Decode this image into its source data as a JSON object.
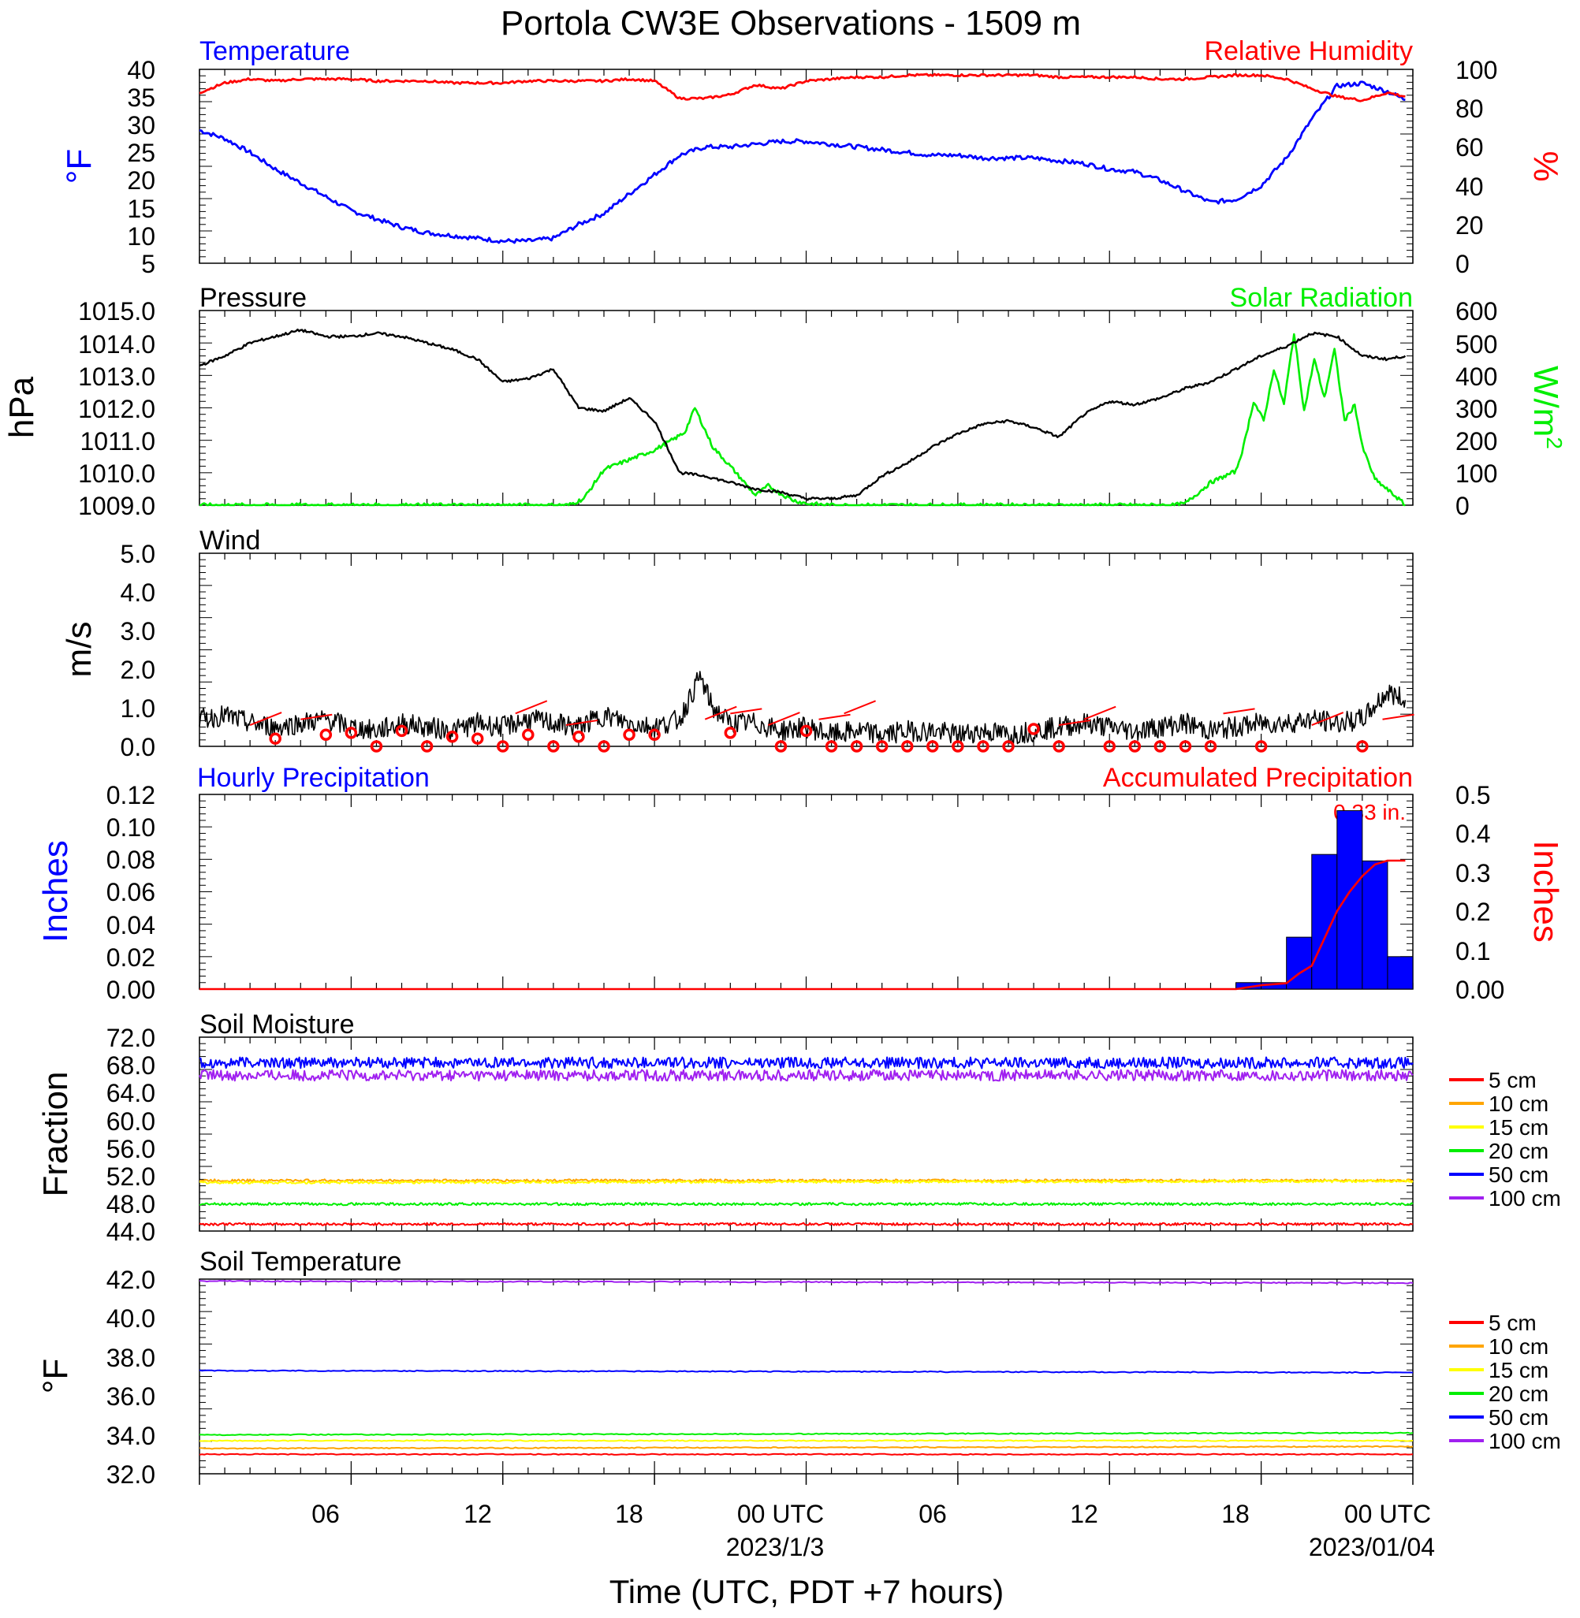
{
  "figure": {
    "title": "Portola CW3E Observations - 1509 m",
    "xlabel": "Time (UTC, PDT +7 hours)",
    "x_ticks": [
      "06",
      "12",
      "18",
      "00 UTC",
      "06",
      "12",
      "18",
      "00 UTC"
    ],
    "date_labels": [
      "2023/1/3",
      "2023/01/04"
    ]
  },
  "colors": {
    "blue": "#0000ff",
    "red": "#ff0000",
    "green": "#00ee00",
    "black": "#000000",
    "orange": "#ffa500",
    "yellow": "#ffff00",
    "purple": "#a020f0"
  },
  "chart_data": [
    {
      "type": "line",
      "title": "Temperature / Relative Humidity",
      "x_range_hours": [
        0,
        48
      ],
      "left_title": "Temperature",
      "right_title": "Relative Humidity",
      "left_ylabel": "°F",
      "right_ylabel": "%",
      "left_ylim": [
        5,
        40
      ],
      "right_ylim": [
        0,
        100
      ],
      "left_ticks": [
        "5",
        "10",
        "15",
        "20",
        "25",
        "30",
        "35",
        "40"
      ],
      "right_ticks": [
        "0",
        "20",
        "40",
        "60",
        "80",
        "100"
      ],
      "series": [
        {
          "name": "Temperature",
          "axis": "left",
          "color": "#0000ff",
          "x": [
            0,
            1,
            2,
            3,
            4,
            5,
            6,
            7,
            8,
            9,
            10,
            11,
            12,
            13,
            14,
            15,
            16,
            17,
            18,
            19,
            20,
            21,
            22,
            23,
            24,
            25,
            26,
            27,
            28,
            29,
            30,
            31,
            32,
            33,
            34,
            35,
            36,
            37,
            38,
            39,
            40,
            41,
            42,
            43,
            44,
            45,
            46,
            47,
            47.7
          ],
          "y": [
            29,
            27.5,
            25,
            22,
            19.5,
            17,
            14.5,
            13,
            11.5,
            10.5,
            10,
            9.5,
            9,
            9,
            9.5,
            12,
            14,
            17.5,
            21,
            24.5,
            26,
            26,
            26.5,
            27,
            27,
            26.5,
            26,
            25.5,
            25,
            24.5,
            24.5,
            24,
            24,
            24,
            23.5,
            23,
            22,
            21.5,
            20,
            18,
            16,
            16.5,
            19,
            24,
            31,
            37,
            37.5,
            36,
            34.5
          ]
        },
        {
          "name": "Relative Humidity",
          "axis": "right",
          "color": "#ff0000",
          "x": [
            0,
            1,
            2,
            3,
            4,
            5,
            6,
            7,
            8,
            9,
            10,
            11,
            12,
            13,
            14,
            15,
            16,
            17,
            18,
            19,
            20,
            21,
            22,
            23,
            24,
            25,
            26,
            27,
            28,
            29,
            30,
            31,
            32,
            33,
            34,
            35,
            36,
            37,
            38,
            39,
            40,
            41,
            42,
            43,
            44,
            45,
            46,
            47,
            47.7
          ],
          "y": [
            88,
            93,
            95,
            94,
            95,
            95,
            95,
            94,
            94,
            94,
            93,
            93,
            93,
            94,
            94,
            94,
            94,
            95,
            94,
            85,
            85,
            87,
            92,
            90,
            94,
            95,
            96,
            96,
            97,
            97,
            97,
            97,
            97,
            97,
            96,
            96,
            96,
            96,
            95,
            95,
            96,
            97,
            97,
            95,
            90,
            86,
            84,
            88,
            86
          ]
        }
      ]
    },
    {
      "type": "line",
      "title": "Pressure / Solar Radiation",
      "x_range_hours": [
        0,
        48
      ],
      "left_title": "Pressure",
      "right_title": "Solar Radiation",
      "left_ylabel": "hPa",
      "right_ylabel": "W/m",
      "right_ylabel_sup": "2",
      "left_ylim": [
        1009,
        1015
      ],
      "right_ylim": [
        0,
        600
      ],
      "left_ticks": [
        "1009.0",
        "1010.0",
        "1011.0",
        "1012.0",
        "1013.0",
        "1014.0",
        "1015.0"
      ],
      "right_ticks": [
        "0",
        "100",
        "200",
        "300",
        "400",
        "500",
        "600"
      ],
      "series": [
        {
          "name": "Pressure",
          "axis": "left",
          "color": "#000000",
          "x": [
            0,
            1,
            2,
            3,
            4,
            5,
            6,
            7,
            8,
            9,
            10,
            11,
            12,
            13,
            14,
            15,
            16,
            17,
            18,
            19,
            20,
            21,
            22,
            23,
            24,
            25,
            26,
            27,
            28,
            29,
            30,
            31,
            32,
            33,
            34,
            35,
            36,
            37,
            38,
            39,
            40,
            41,
            42,
            43,
            44,
            45,
            46,
            47,
            47.7
          ],
          "y": [
            1013.3,
            1013.6,
            1014,
            1014.2,
            1014.4,
            1014.2,
            1014.2,
            1014.3,
            1014.2,
            1014,
            1013.8,
            1013.5,
            1012.8,
            1012.9,
            1013.2,
            1012,
            1011.9,
            1012.3,
            1011.6,
            1010,
            1009.9,
            1009.7,
            1009.5,
            1009.4,
            1009.2,
            1009.2,
            1009.3,
            1009.9,
            1010.3,
            1010.8,
            1011.2,
            1011.5,
            1011.6,
            1011.4,
            1011.1,
            1011.8,
            1012.2,
            1012.1,
            1012.3,
            1012.6,
            1012.8,
            1013.2,
            1013.6,
            1013.9,
            1014.3,
            1014.2,
            1013.6,
            1013.5,
            1013.6
          ]
        },
        {
          "name": "Solar Radiation",
          "axis": "right",
          "color": "#00ee00",
          "x": [
            0,
            14.6,
            15.2,
            16,
            17,
            18,
            18.8,
            19.2,
            19.6,
            20.3,
            21,
            22,
            22.5,
            23,
            23.5,
            24,
            25,
            30,
            38.5,
            39,
            40,
            41,
            41.3,
            41.7,
            42.1,
            42.5,
            42.9,
            43.3,
            43.7,
            44.1,
            44.5,
            44.9,
            45.3,
            45.7,
            46,
            46.5,
            47.5,
            47.7
          ],
          "y": [
            0,
            0,
            20,
            110,
            140,
            170,
            205,
            225,
            300,
            180,
            120,
            30,
            60,
            35,
            15,
            5,
            0,
            0,
            0,
            5,
            70,
            105,
            180,
            320,
            260,
            420,
            310,
            530,
            290,
            450,
            330,
            480,
            260,
            310,
            180,
            80,
            15,
            0
          ]
        }
      ]
    },
    {
      "type": "line",
      "title": "Wind",
      "x_range_hours": [
        0,
        48
      ],
      "ylabel": "m/s",
      "ylim": [
        0,
        5
      ],
      "ticks": [
        "0.0",
        "1.0",
        "2.0",
        "3.0",
        "4.0",
        "5.0"
      ],
      "series": [
        {
          "name": "Wind",
          "color": "#000000",
          "x": [
            0,
            1,
            2,
            3,
            4,
            5,
            6,
            7,
            8,
            9,
            10,
            11,
            12,
            13,
            14,
            15,
            16,
            17,
            18,
            19,
            19.8,
            20.3,
            21,
            22,
            23,
            24,
            25,
            26,
            27,
            28,
            29,
            30,
            31,
            32,
            33,
            34,
            35,
            36,
            37,
            38,
            39,
            40,
            41,
            42,
            43,
            44,
            45,
            46,
            47,
            47.7
          ],
          "y": [
            0.7,
            0.8,
            0.6,
            0.5,
            0.6,
            0.7,
            0.5,
            0.4,
            0.6,
            0.5,
            0.4,
            0.6,
            0.5,
            0.7,
            0.6,
            0.5,
            0.8,
            0.6,
            0.5,
            0.7,
            1.8,
            1.0,
            0.6,
            0.6,
            0.4,
            0.5,
            0.3,
            0.4,
            0.3,
            0.4,
            0.4,
            0.3,
            0.4,
            0.3,
            0.4,
            0.5,
            0.6,
            0.5,
            0.4,
            0.5,
            0.6,
            0.4,
            0.5,
            0.6,
            0.6,
            0.7,
            0.6,
            0.7,
            1.4,
            1.2
          ]
        }
      ],
      "barbs": {
        "color": "#ff0000",
        "calm_hours": [
          3,
          5,
          6,
          7,
          8,
          9,
          10,
          11,
          12,
          13,
          14,
          15,
          16,
          17,
          18,
          21,
          23,
          24,
          25,
          26,
          27,
          28,
          29,
          30,
          31,
          32,
          33,
          34,
          36,
          37,
          38,
          39,
          40,
          42,
          46
        ],
        "calm_values": [
          0.2,
          0.3,
          0.35,
          0.0,
          0.4,
          0.0,
          0.25,
          0.2,
          0.0,
          0.3,
          0.0,
          0.25,
          0.0,
          0.3,
          0.3,
          0.35,
          0.0,
          0.4,
          0.0,
          0.0,
          0.0,
          0.0,
          0.0,
          0.0,
          0.0,
          0.0,
          0.45,
          0.0,
          0.0,
          0.0,
          0.0,
          0.0,
          0.0,
          0.0,
          0.0
        ],
        "flag_hours": [
          2,
          4,
          12.5,
          14.5,
          20,
          21,
          22.5,
          24.5,
          25.5,
          34,
          35,
          40.5,
          44,
          46.8
        ]
      }
    },
    {
      "type": "bar",
      "title": "Hourly / Accumulated Precipitation",
      "x_range_hours": [
        0,
        48
      ],
      "left_title": "Hourly Precipitation",
      "right_title": "Accumulated Precipitation",
      "left_ylabel": "Inches",
      "right_ylabel": "Inches",
      "left_ylim": [
        0,
        0.12
      ],
      "right_ylim": [
        0,
        0.5
      ],
      "left_ticks": [
        "0.00",
        "0.02",
        "0.04",
        "0.06",
        "0.08",
        "0.10",
        "0.12"
      ],
      "right_ticks": [
        "0.00",
        "0.1",
        "0.2",
        "0.3",
        "0.4",
        "0.5"
      ],
      "total_label": "0.33 in.",
      "hourly": {
        "color": "#0000ff",
        "start_hours": [
          41,
          42,
          43,
          44,
          45,
          46,
          47
        ],
        "values": [
          0.004,
          0.004,
          0.032,
          0.083,
          0.11,
          0.079,
          0.02
        ]
      },
      "accumulated": {
        "color": "#ff0000",
        "x": [
          0,
          41,
          42,
          43,
          43.5,
          44,
          44.5,
          45,
          45.5,
          46,
          46.5,
          47,
          47.7
        ],
        "y": [
          0,
          0,
          0.01,
          0.015,
          0.04,
          0.06,
          0.13,
          0.2,
          0.25,
          0.29,
          0.32,
          0.33,
          0.33
        ]
      }
    },
    {
      "type": "line",
      "title": "Soil Moisture",
      "x_range_hours": [
        0,
        48
      ],
      "ylabel": "Fraction",
      "ylim": [
        44,
        72
      ],
      "ticks": [
        "44.0",
        "48.0",
        "52.0",
        "56.0",
        "60.0",
        "64.0",
        "68.0",
        "72.0"
      ],
      "series": [
        {
          "name": "5 cm",
          "color": "#ff0000",
          "x": [
            0,
            48
          ],
          "y": [
            45.0,
            45.0
          ]
        },
        {
          "name": "10 cm",
          "color": "#ffa500",
          "x": [
            0,
            48
          ],
          "y": [
            51.3,
            51.3
          ]
        },
        {
          "name": "15 cm",
          "color": "#ffff00",
          "x": [
            0,
            48
          ],
          "y": [
            51.0,
            51.2
          ]
        },
        {
          "name": "20 cm",
          "color": "#00ee00",
          "x": [
            0,
            48
          ],
          "y": [
            47.9,
            47.9
          ]
        },
        {
          "name": "50 cm",
          "color": "#0000ff",
          "x": [
            0,
            48
          ],
          "y": [
            68.3,
            68.3
          ]
        },
        {
          "name": "100 cm",
          "color": "#a020f0",
          "x": [
            0,
            48
          ],
          "y": [
            66.5,
            66.5
          ]
        }
      ]
    },
    {
      "type": "line",
      "title": "Soil Temperature",
      "x_range_hours": [
        0,
        48
      ],
      "ylabel": "°F",
      "ylim": [
        32,
        42
      ],
      "ticks": [
        "32.0",
        "34.0",
        "36.0",
        "38.0",
        "40.0",
        "42.0"
      ],
      "series": [
        {
          "name": "5 cm",
          "color": "#ff0000",
          "x": [
            0,
            48
          ],
          "y": [
            33.0,
            33.0
          ]
        },
        {
          "name": "10 cm",
          "color": "#ffa500",
          "x": [
            0,
            48
          ],
          "y": [
            33.3,
            33.4
          ]
        },
        {
          "name": "15 cm",
          "color": "#ffff00",
          "x": [
            0,
            48
          ],
          "y": [
            33.7,
            33.7
          ]
        },
        {
          "name": "20 cm",
          "color": "#00ee00",
          "x": [
            0,
            48
          ],
          "y": [
            34.0,
            34.1
          ]
        },
        {
          "name": "50 cm",
          "color": "#0000ff",
          "x": [
            0,
            48
          ],
          "y": [
            37.3,
            37.2
          ]
        },
        {
          "name": "100 cm",
          "color": "#a020f0",
          "x": [
            0,
            48
          ],
          "y": [
            41.9,
            41.8
          ]
        }
      ]
    }
  ]
}
